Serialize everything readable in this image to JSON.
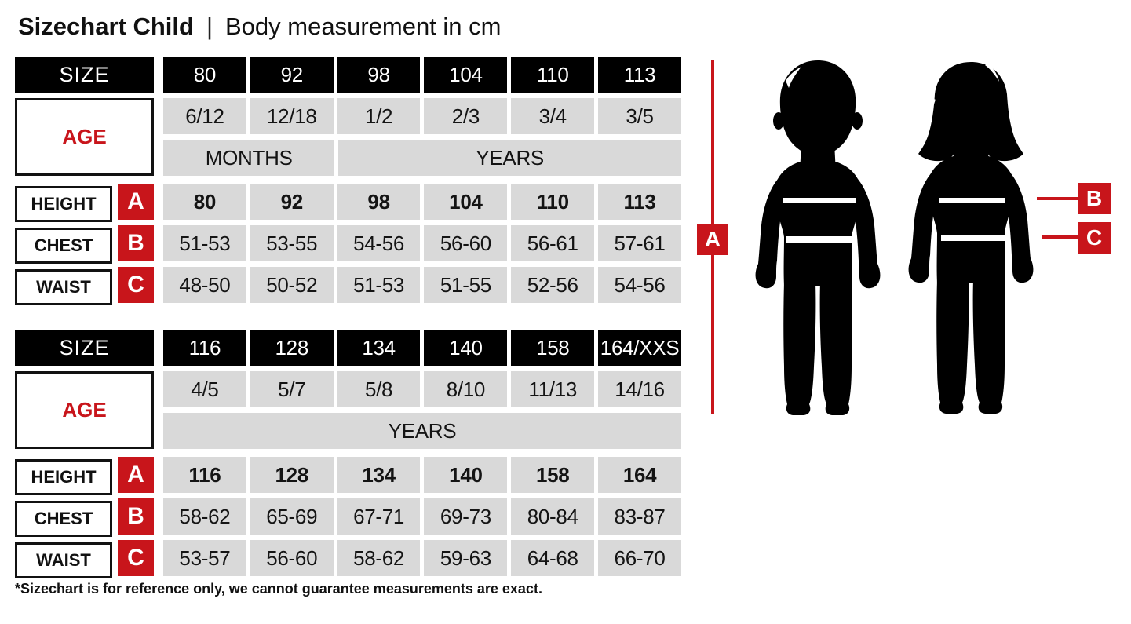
{
  "title": {
    "main": "Sizechart Child",
    "separator": "|",
    "subtitle": "Body measurement in cm"
  },
  "colors": {
    "red": "#c8151b",
    "cell_gray": "#d9d9d9",
    "cell_black": "#000000",
    "silhouette": "#000000"
  },
  "labels": {
    "size": "SIZE",
    "age": "AGE",
    "height": "HEIGHT",
    "chest": "CHEST",
    "waist": "WAIST",
    "marker_a": "A",
    "marker_b": "B",
    "marker_c": "C"
  },
  "tables": [
    {
      "sizes": [
        "80",
        "92",
        "98",
        "104",
        "110",
        "113"
      ],
      "ages": [
        "6/12",
        "12/18",
        "1/2",
        "2/3",
        "3/4",
        "3/5"
      ],
      "units": {
        "months": "MONTHS",
        "years": "YEARS"
      },
      "height_values": [
        "80",
        "92",
        "98",
        "104",
        "110",
        "113"
      ],
      "chest_values": [
        "51-53",
        "53-55",
        "54-56",
        "56-60",
        "56-61",
        "57-61"
      ],
      "waist_values": [
        "48-50",
        "50-52",
        "51-53",
        "51-55",
        "52-56",
        "54-56"
      ]
    },
    {
      "sizes": [
        "116",
        "128",
        "134",
        "140",
        "158",
        "164/XXS"
      ],
      "ages": [
        "4/5",
        "5/7",
        "5/8",
        "8/10",
        "11/13",
        "14/16"
      ],
      "units": {
        "years": "YEARS"
      },
      "height_values": [
        "116",
        "128",
        "134",
        "140",
        "158",
        "164"
      ],
      "chest_values": [
        "58-62",
        "65-69",
        "67-71",
        "69-73",
        "80-84",
        "83-87"
      ],
      "waist_values": [
        "53-57",
        "56-60",
        "58-62",
        "59-63",
        "64-68",
        "66-70"
      ]
    }
  ],
  "figure": {
    "icons": [
      "boy-silhouette",
      "girl-silhouette"
    ],
    "marker_a": "A",
    "marker_b": "B",
    "marker_c": "C"
  },
  "footnote": "*Sizechart is for reference only, we cannot guarantee measurements are exact."
}
